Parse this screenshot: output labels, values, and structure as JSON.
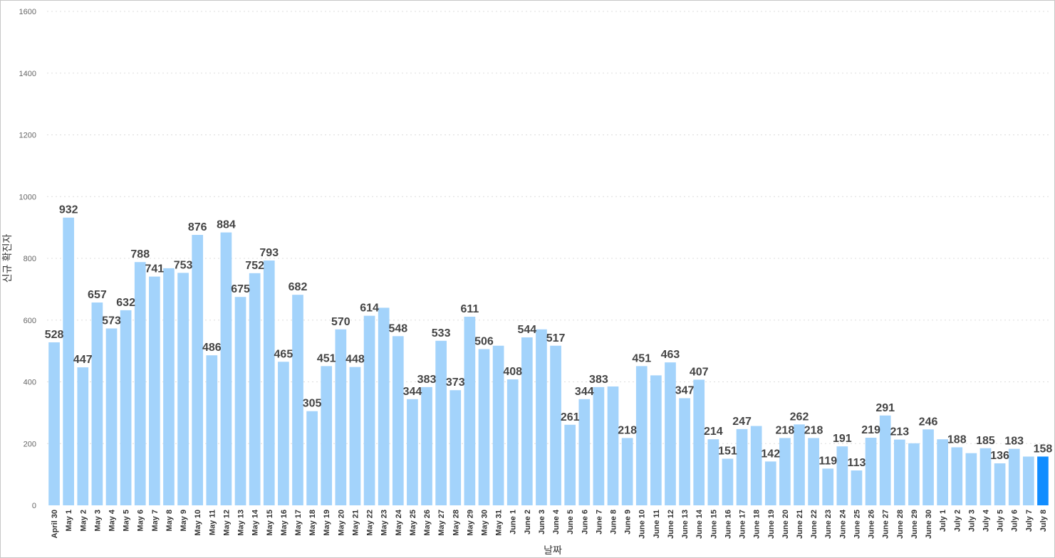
{
  "chart_data": {
    "type": "bar",
    "xlabel": "날짜",
    "ylabel": "신규 확진자",
    "ylim": [
      0,
      1600
    ],
    "yticks": [
      0,
      200,
      400,
      600,
      800,
      1000,
      1200,
      1400,
      1600
    ],
    "grid": true,
    "colors": {
      "bar": "#a3d3fb",
      "highlight": "#118dff"
    },
    "highlight_index": 69,
    "categories": [
      "April 30",
      "May 1",
      "May 2",
      "May 3",
      "May 4",
      "May 5",
      "May 6",
      "May 7",
      "May 8",
      "May 9",
      "May 10",
      "May 11",
      "May 12",
      "May 13",
      "May 14",
      "May 15",
      "May 16",
      "May 17",
      "May 18",
      "May 19",
      "May 20",
      "May 21",
      "May 22",
      "May 23",
      "May 24",
      "May 25",
      "May 26",
      "May 27",
      "May 28",
      "May 29",
      "May 30",
      "May 31",
      "June 1",
      "June 2",
      "June 3",
      "June 4",
      "June 5",
      "June 6",
      "June 7",
      "June 8",
      "June 9",
      "June 10",
      "June 11",
      "June 12",
      "June 13",
      "June 14",
      "June 15",
      "June 16",
      "June 17",
      "June 18",
      "June 19",
      "June 20",
      "June 21",
      "June 22",
      "June 23",
      "June 24",
      "June 25",
      "June 26",
      "June 27",
      "June 28",
      "June 29",
      "June 30",
      "July 1",
      "July 2",
      "July 3",
      "July 4",
      "July 5",
      "July 6",
      "July 7",
      "July 8"
    ],
    "values": [
      528,
      932,
      447,
      657,
      573,
      632,
      788,
      741,
      768,
      753,
      876,
      486,
      884,
      675,
      752,
      793,
      465,
      682,
      305,
      451,
      570,
      448,
      614,
      640,
      548,
      344,
      383,
      533,
      373,
      611,
      506,
      517,
      408,
      544,
      570,
      517,
      261,
      344,
      383,
      385,
      218,
      451,
      421,
      463,
      347,
      407,
      214,
      151,
      247,
      257,
      142,
      218,
      262,
      218,
      119,
      191,
      113,
      219,
      291,
      213,
      201,
      246,
      214,
      188,
      169,
      185,
      136,
      183,
      158,
      158
    ],
    "labels": [
      "528",
      "932",
      "447",
      "657",
      "573",
      "632",
      "788",
      "741",
      "",
      "753",
      "876",
      "486",
      "884",
      "675",
      "752",
      "793",
      "465",
      "682",
      "305",
      "451",
      "570",
      "448",
      "614",
      "",
      "548",
      "344",
      "383",
      "533",
      "373",
      "611",
      "506",
      "",
      "408",
      "544",
      "",
      "517",
      "261",
      "344",
      "383",
      "",
      "218",
      "451",
      "",
      "463",
      "347",
      "407",
      "214",
      "151",
      "247",
      "",
      "142",
      "218",
      "262",
      "218",
      "119",
      "191",
      "113",
      "219",
      "291",
      "213",
      "",
      "246",
      "",
      "188",
      "",
      "185",
      "136",
      "183",
      "",
      "158"
    ]
  }
}
